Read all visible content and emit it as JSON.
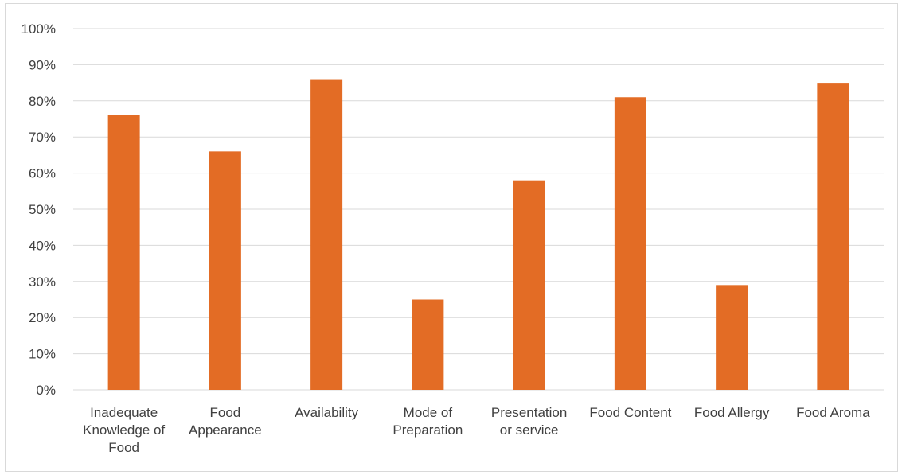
{
  "chart_data": {
    "type": "bar",
    "title": "",
    "xlabel": "",
    "ylabel": "",
    "ylim": [
      0,
      100
    ],
    "y_ticks": [
      "0%",
      "10%",
      "20%",
      "30%",
      "40%",
      "50%",
      "60%",
      "70%",
      "80%",
      "90%",
      "100%"
    ],
    "y_tick_values": [
      0,
      10,
      20,
      30,
      40,
      50,
      60,
      70,
      80,
      90,
      100
    ],
    "grid": true,
    "bar_color": "#e36c25",
    "grid_color": "#d9d9d9",
    "categories": [
      [
        "Inadequate",
        "Knowledge of",
        "Food"
      ],
      [
        "Food",
        "Appearance"
      ],
      [
        "Availability"
      ],
      [
        "Mode of",
        "Preparation"
      ],
      [
        "Presentation",
        "or service"
      ],
      [
        "Food Content"
      ],
      [
        "Food Allergy"
      ],
      [
        "Food Aroma"
      ]
    ],
    "values": [
      76,
      66,
      86,
      25,
      58,
      81,
      29,
      85
    ]
  }
}
